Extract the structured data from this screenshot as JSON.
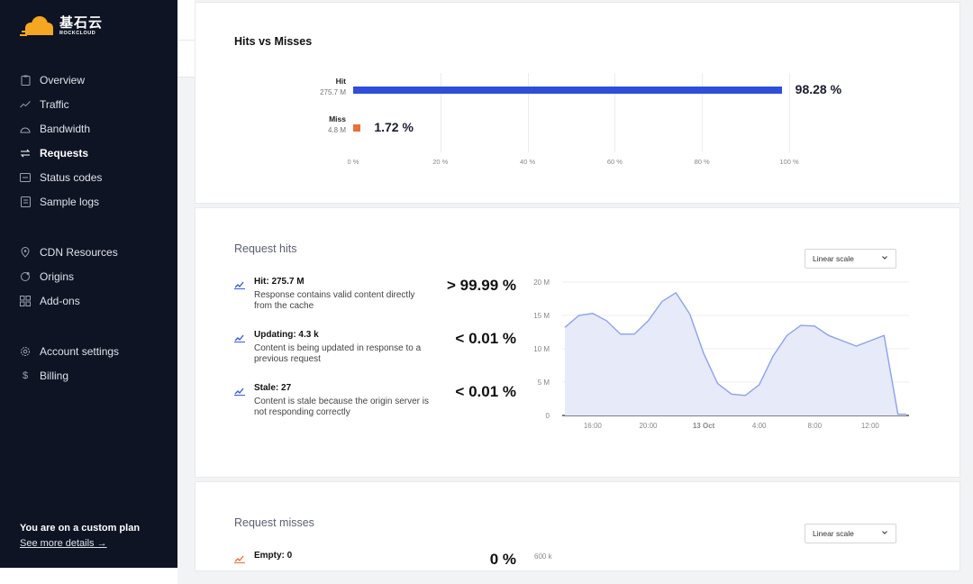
{
  "brand": {
    "name_cn": "基石云",
    "name_en": "ROCKCLOUD",
    "color": "#f5a623"
  },
  "sidebar": {
    "groups": [
      [
        {
          "label": "Overview",
          "icon": "clipboard-icon",
          "active": false
        },
        {
          "label": "Traffic",
          "icon": "trend-icon",
          "active": false
        },
        {
          "label": "Bandwidth",
          "icon": "gauge-icon",
          "active": false
        },
        {
          "label": "Requests",
          "icon": "arrows-swap-icon",
          "active": true
        },
        {
          "label": "Status codes",
          "icon": "status-icon",
          "active": false
        },
        {
          "label": "Sample logs",
          "icon": "logs-icon",
          "active": false
        }
      ],
      [
        {
          "label": "CDN Resources",
          "icon": "location-pin-icon",
          "active": false
        },
        {
          "label": "Origins",
          "icon": "origins-icon",
          "active": false
        },
        {
          "label": "Add-ons",
          "icon": "grid-icon",
          "active": false
        }
      ],
      [
        {
          "label": "Account settings",
          "icon": "gear-icon",
          "active": false
        },
        {
          "label": "Billing",
          "icon": "dollar-icon",
          "active": false
        }
      ]
    ],
    "plan": {
      "title": "You are on a custom plan",
      "link": "See more details →"
    }
  },
  "hits_vs_misses": {
    "title": "Hits vs Misses",
    "rows": [
      {
        "name": "Hit",
        "count": "275.7 M",
        "percent_value": 98.28,
        "percent_label": "98.28 %",
        "color": "#2f4fd8"
      },
      {
        "name": "Miss",
        "count": "4.8 M",
        "percent_value": 1.72,
        "percent_label": "1.72 %",
        "color": "#e8703a"
      }
    ],
    "ticks": [
      "0 %",
      "20 %",
      "40 %",
      "60 %",
      "80 %",
      "100 %"
    ]
  },
  "request_hits": {
    "title": "Request hits",
    "scale_select": "Linear scale",
    "stats": [
      {
        "head": "Hit: 275.7 M",
        "desc": "Response contains valid content directly from the cache",
        "pct": "> 99.99 %"
      },
      {
        "head": "Updating: 4.3 k",
        "desc": "Content is being updated in response to a previous request",
        "pct": "< 0.01 %"
      },
      {
        "head": "Stale: 27",
        "desc": "Content is stale because the origin server is not responding correctly",
        "pct": "< 0.01 %"
      }
    ]
  },
  "request_misses": {
    "title": "Request misses",
    "scale_select": "Linear scale",
    "stats": [
      {
        "head": "Empty: 0",
        "pct": "0 %"
      }
    ],
    "y_top_label": "600 k"
  },
  "chart_data": [
    {
      "type": "bar",
      "categories": [
        "Hit",
        "Miss"
      ],
      "values": [
        98.28,
        1.72
      ],
      "xlim": [
        0,
        100
      ],
      "title": "Hits vs Misses"
    },
    {
      "type": "area",
      "title": "Request hits",
      "yticks": [
        "0",
        "5 M",
        "10 M",
        "15 M",
        "20 M"
      ],
      "ylim": [
        0,
        20
      ],
      "xticks": [
        "16:00",
        "20:00",
        "13 Oct",
        "4:00",
        "8:00",
        "12:00"
      ],
      "xtick_hours": [
        16,
        20,
        24,
        28,
        32,
        36
      ],
      "x_hours": [
        14,
        15,
        16,
        17,
        18,
        19,
        20,
        21,
        22,
        23,
        24,
        25,
        26,
        27,
        28,
        29,
        30,
        31,
        32,
        33,
        34,
        35,
        36,
        37,
        38,
        38.6
      ],
      "values": [
        13.2,
        15.0,
        15.3,
        14.2,
        12.2,
        12.2,
        14.2,
        17.1,
        18.4,
        15.2,
        9.3,
        4.8,
        3.2,
        3.0,
        4.6,
        8.9,
        12.0,
        13.5,
        13.4,
        12.0,
        11.2,
        10.4,
        11.2,
        12.0,
        0.2,
        0.2
      ],
      "color": "#8da2e8",
      "fill": "#e7eaf8",
      "grid": true
    }
  ]
}
